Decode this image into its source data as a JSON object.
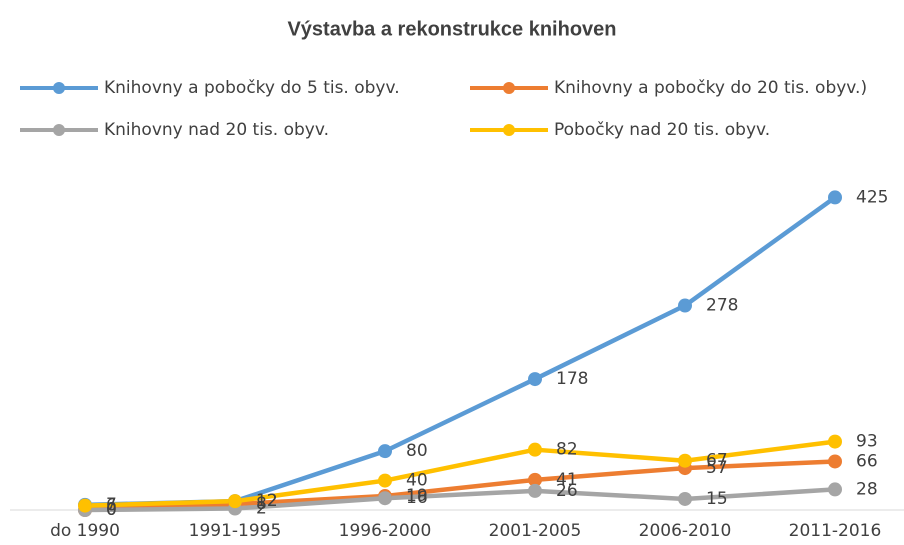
{
  "chart_data": {
    "type": "line",
    "title": "Výstavba a rekonstrukce knihoven",
    "categories": [
      "do 1990",
      "1991-1995",
      "1996-2000",
      "2001-2005",
      "2006-2010",
      "2011-2016"
    ],
    "series": [
      {
        "name": "Knihovny a pobočky do 5 tis. obyv.",
        "color": "#5b9bd5",
        "values": [
          7,
          12,
          80,
          178,
          278,
          425
        ]
      },
      {
        "name": "Knihovny a pobočky do 20 tis. obyv.)",
        "color": "#ed7d31",
        "values": [
          0,
          8,
          19,
          41,
          57,
          66
        ]
      },
      {
        "name": "Knihovny nad 20 tis. obyv.",
        "color": "#a5a5a5",
        "values": [
          0,
          2,
          16,
          26,
          15,
          28
        ]
      },
      {
        "name": "Pobočky nad 20 tis. obyv.",
        "color": "#ffc000",
        "values": [
          6,
          12,
          40,
          82,
          67,
          93
        ]
      }
    ],
    "ylim": [
      0,
      450
    ]
  }
}
